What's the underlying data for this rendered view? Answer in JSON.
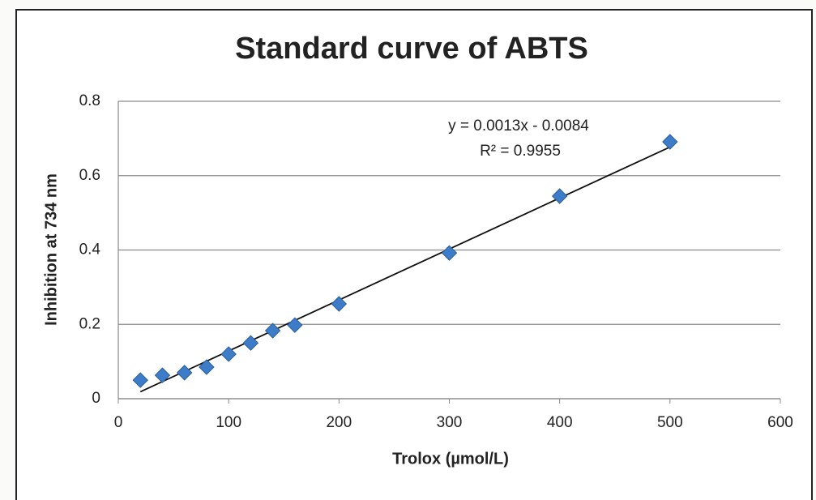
{
  "chart_data": {
    "type": "scatter",
    "title": "Standard curve of ABTS",
    "x_label": "Trolox (µmol/L)",
    "y_label": "Inhibition at 734 nm",
    "x": [
      20,
      40,
      60,
      80,
      100,
      120,
      140,
      160,
      200,
      300,
      400,
      500
    ],
    "series": [
      {
        "color": "#3d7cc9",
        "values": [
          0.05,
          0.063,
          0.07,
          0.085,
          0.12,
          0.15,
          0.183,
          0.198,
          0.255,
          0.392,
          0.545,
          0.691
        ]
      }
    ],
    "trendline": "linear",
    "annotations": [
      "y = 0.0013x - 0.0084",
      "R² = 0.9955"
    ],
    "xlim": [
      0,
      600
    ],
    "xticks": [
      0,
      100,
      200,
      300,
      400,
      500,
      600
    ],
    "ylim": [
      0,
      0.8
    ],
    "yticks": [
      0,
      0.2,
      0.4,
      0.6,
      0.8
    ],
    "grid": true
  }
}
